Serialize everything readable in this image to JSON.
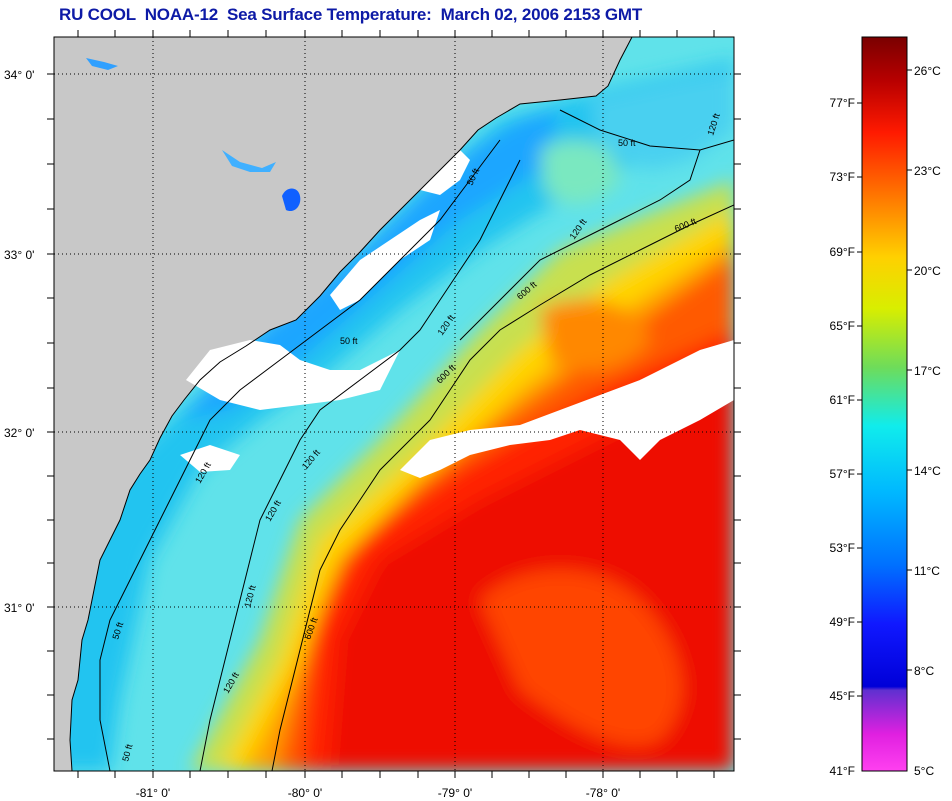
{
  "title": "RU COOL  NOAA-12  Sea Surface Temperature:  March 02, 2006 2153 GMT",
  "map": {
    "lon_labels": [
      "-81° 0'",
      "-80° 0'",
      "-79° 0'",
      "-78° 0'"
    ],
    "lat_labels": [
      "34° 0'",
      "33° 0'",
      "32° 0'",
      "31° 0'"
    ],
    "contour_labels": [
      "50 ft",
      "120 ft",
      "600 ft",
      "120 ft",
      "50 ft",
      "120 ft",
      "600 ft",
      "120 ft",
      "50 ft",
      "120 ft",
      "600 ft",
      "120 ft",
      "50 ft",
      "120 ft",
      "600 ft",
      "120 ft",
      "50 ft"
    ],
    "colors": {
      "land": "#c8c8c8",
      "cloud": "#ffffff",
      "grid": "#000000"
    }
  },
  "colorbar": {
    "fahrenheit_labels": [
      "77°F",
      "73°F",
      "69°F",
      "65°F",
      "61°F",
      "57°F",
      "53°F",
      "49°F",
      "45°F",
      "41°F"
    ],
    "celsius_labels": [
      "26°C",
      "23°C",
      "20°C",
      "17°C",
      "14°C",
      "11°C",
      "8°C",
      "5°C"
    ]
  }
}
